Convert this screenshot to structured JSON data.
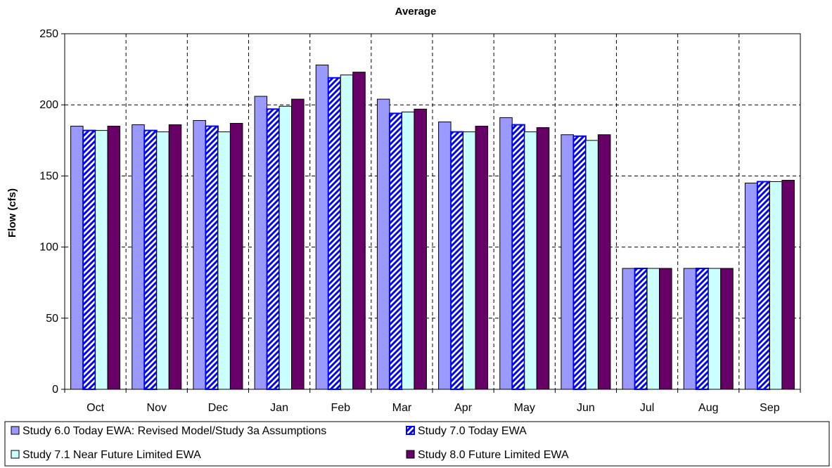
{
  "chart_data": {
    "type": "bar",
    "title": "Average",
    "xlabel": "",
    "ylabel": "Flow (cfs)",
    "ylim": [
      0,
      250
    ],
    "yticks": [
      0,
      50,
      100,
      150,
      200,
      250
    ],
    "grid": true,
    "legend_position": "bottom",
    "categories": [
      "Oct",
      "Nov",
      "Dec",
      "Jan",
      "Feb",
      "Mar",
      "Apr",
      "May",
      "Jun",
      "Jul",
      "Aug",
      "Sep"
    ],
    "series": [
      {
        "name": "Study 6.0 Today EWA: Revised Model/Study 3a Assumptions",
        "color": "#9999ff",
        "pattern": "solid",
        "values": [
          185,
          186,
          189,
          206,
          228,
          204,
          188,
          191,
          179,
          85,
          85,
          145
        ]
      },
      {
        "name": "Study 7.0 Today EWA",
        "color": "#0000ff",
        "pattern": "diagonal-stripes",
        "values": [
          182,
          182,
          185,
          197,
          219,
          194,
          181,
          186,
          178,
          85,
          85,
          146
        ]
      },
      {
        "name": "Study 7.1 Near Future Limited EWA",
        "color": "#ccffff",
        "pattern": "solid",
        "values": [
          182,
          181,
          181,
          199,
          221,
          195,
          181,
          181,
          175,
          85,
          85,
          146
        ]
      },
      {
        "name": "Study 8.0 Future Limited EWA",
        "color": "#660066",
        "pattern": "solid",
        "values": [
          185,
          186,
          187,
          204,
          223,
          197,
          185,
          184,
          179,
          85,
          85,
          147
        ]
      }
    ]
  }
}
